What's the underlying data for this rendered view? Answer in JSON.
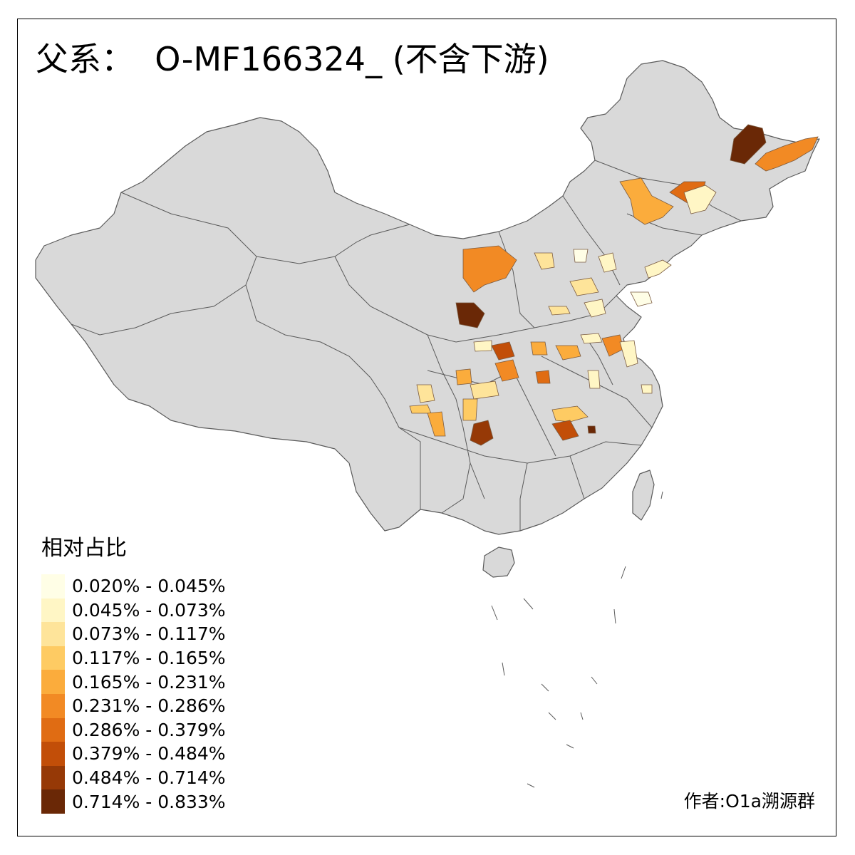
{
  "title": "父系：  O-MF166324_ (不含下游)",
  "legend": {
    "title": "相对占比",
    "items": [
      {
        "label": "0.020% - 0.045%",
        "color": "#fffee6"
      },
      {
        "label": "0.045% - 0.073%",
        "color": "#fff6c5"
      },
      {
        "label": "0.073% - 0.117%",
        "color": "#fee49a"
      },
      {
        "label": "0.117% - 0.165%",
        "color": "#fecb63"
      },
      {
        "label": "0.165% - 0.231%",
        "color": "#fbac3c"
      },
      {
        "label": "0.231% - 0.286%",
        "color": "#f28a24"
      },
      {
        "label": "0.286% - 0.379%",
        "color": "#e06c13"
      },
      {
        "label": "0.379% - 0.484%",
        "color": "#c24e08"
      },
      {
        "label": "0.484% - 0.714%",
        "color": "#963906"
      },
      {
        "label": "0.714% - 0.833%",
        "color": "#6a2806"
      }
    ]
  },
  "credit": "作者:O1a溯源群",
  "colors": {
    "land": "#d9d9d9",
    "border": "#5a5a5a",
    "frame": "#000000"
  }
}
